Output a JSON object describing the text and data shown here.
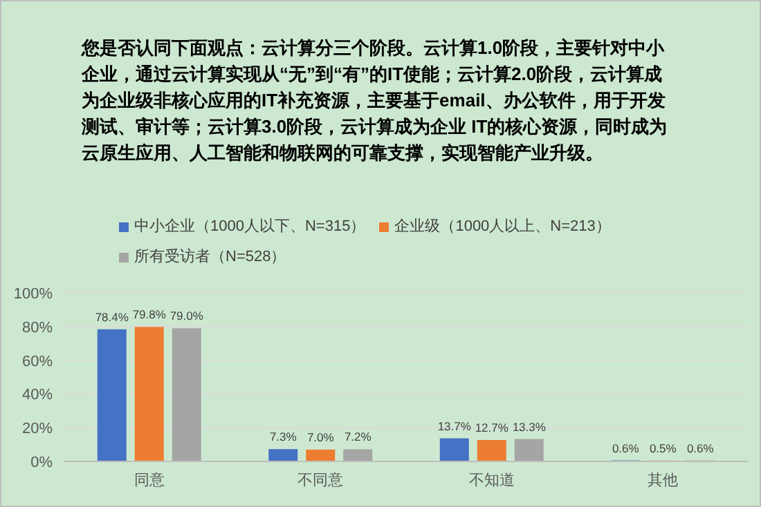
{
  "chart_data": {
    "type": "bar",
    "title": "您是否认同下面观点：云计算分三个阶段。云计算1.0阶段，主要针对中小企业，通过云计算实现从“无”到“有”的IT使能；云计算2.0阶段，云计算成为企业级非核心应用的IT补充资源，主要基于email、办公软件，用于开发测试、审计等；云计算3.0阶段，云计算成为企业 IT的核心资源，同时成为云原生应用、人工智能和物联网的可靠支撑，实现智能产业升级。",
    "categories": [
      "同意",
      "不同意",
      "不知道",
      "其他"
    ],
    "series": [
      {
        "name": "中小企业（1000人以下、N=315）",
        "color": "#4472c4",
        "values": [
          78.4,
          7.3,
          13.7,
          0.6
        ],
        "value_labels": [
          "78.4%",
          "7.3%",
          "13.7%",
          "0.6%"
        ]
      },
      {
        "name": "企业级（1000人以上、N=213）",
        "color": "#ed7d31",
        "values": [
          79.8,
          7.0,
          12.7,
          0.5
        ],
        "value_labels": [
          "79.8%",
          "7.0%",
          "12.7%",
          "0.5%"
        ]
      },
      {
        "name": "所有受访者（N=528）",
        "color": "#a5a5a5",
        "values": [
          79.0,
          7.2,
          13.3,
          0.6
        ],
        "value_labels": [
          "79.0%",
          "7.2%",
          "13.3%",
          "0.6%"
        ]
      }
    ],
    "ylim": [
      0,
      100
    ],
    "yticks": [
      {
        "value": 0,
        "label": "0%"
      },
      {
        "value": 20,
        "label": "20%"
      },
      {
        "value": 40,
        "label": "40%"
      },
      {
        "value": 60,
        "label": "60%"
      },
      {
        "value": 80,
        "label": "80%"
      },
      {
        "value": 100,
        "label": "100%"
      }
    ],
    "grid": "y",
    "legend": "top"
  }
}
